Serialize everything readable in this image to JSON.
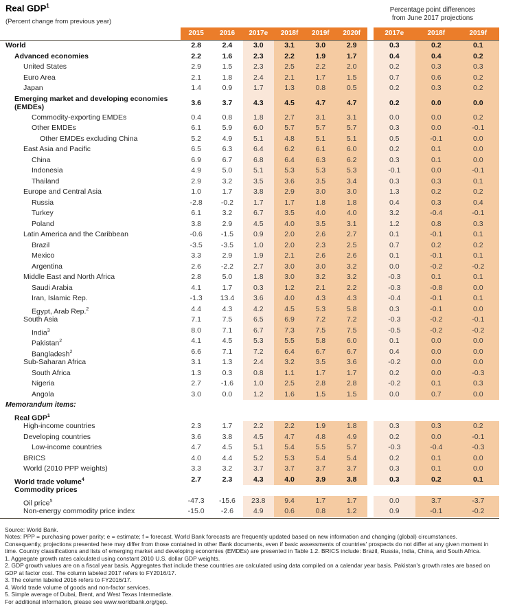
{
  "header": {
    "title": "Real GDP",
    "title_sup": "1",
    "subtitle": "(Percent change from previous year)",
    "diff_caption_line1": "Percentage point differences",
    "diff_caption_line2": "from June 2017 projections"
  },
  "colors": {
    "header_bg": "#EB7D2A",
    "shade_light": "#FAE7D9",
    "shade_dark": "#F5CBA2",
    "rule_color": "#4a4336"
  },
  "table": {
    "year_columns": [
      "2015",
      "2016",
      "2017e",
      "2018f",
      "2019f",
      "2020f"
    ],
    "diff_columns": [
      "2017e",
      "2018f",
      "2019f"
    ],
    "rows": [
      {
        "label": "World",
        "sup": "",
        "indent": 0,
        "bold": true,
        "italic": false,
        "tall": false,
        "values": [
          "2.8",
          "2.4",
          "3.0",
          "3.1",
          "3.0",
          "2.9"
        ],
        "diffs": [
          "0.3",
          "0.2",
          "0.1"
        ]
      },
      {
        "label": "Advanced economies",
        "sup": "",
        "indent": 1,
        "bold": true,
        "italic": false,
        "tall": false,
        "values": [
          "2.2",
          "1.6",
          "2.3",
          "2.2",
          "1.9",
          "1.7"
        ],
        "diffs": [
          "0.4",
          "0.4",
          "0.2"
        ]
      },
      {
        "label": "United States",
        "sup": "",
        "indent": 2,
        "bold": false,
        "italic": false,
        "tall": false,
        "values": [
          "2.9",
          "1.5",
          "2.3",
          "2.5",
          "2.2",
          "2.0"
        ],
        "diffs": [
          "0.2",
          "0.3",
          "0.3"
        ]
      },
      {
        "label": "Euro Area",
        "sup": "",
        "indent": 2,
        "bold": false,
        "italic": false,
        "tall": false,
        "values": [
          "2.1",
          "1.8",
          "2.4",
          "2.1",
          "1.7",
          "1.5"
        ],
        "diffs": [
          "0.7",
          "0.6",
          "0.2"
        ]
      },
      {
        "label": "Japan",
        "sup": "",
        "indent": 2,
        "bold": false,
        "italic": false,
        "tall": false,
        "values": [
          "1.4",
          "0.9",
          "1.7",
          "1.3",
          "0.8",
          "0.5"
        ],
        "diffs": [
          "0.2",
          "0.3",
          "0.2"
        ]
      },
      {
        "label": "Emerging market and developing economies (EMDEs)",
        "sup": "",
        "indent": 1,
        "bold": true,
        "italic": false,
        "tall": true,
        "values": [
          "3.6",
          "3.7",
          "4.3",
          "4.5",
          "4.7",
          "4.7"
        ],
        "diffs": [
          "0.2",
          "0.0",
          "0.0"
        ]
      },
      {
        "label": "Commodity-exporting EMDEs",
        "sup": "",
        "indent": 3,
        "bold": false,
        "italic": false,
        "tall": false,
        "values": [
          "0.4",
          "0.8",
          "1.8",
          "2.7",
          "3.1",
          "3.1"
        ],
        "diffs": [
          "0.0",
          "0.0",
          "0.2"
        ]
      },
      {
        "label": "Other EMDEs",
        "sup": "",
        "indent": 3,
        "bold": false,
        "italic": false,
        "tall": false,
        "values": [
          "6.1",
          "5.9",
          "6.0",
          "5.7",
          "5.7",
          "5.7"
        ],
        "diffs": [
          "0.3",
          "0.0",
          "-0.1"
        ]
      },
      {
        "label": "Other EMDEs excluding China",
        "sup": "",
        "indent": 4,
        "bold": false,
        "italic": false,
        "tall": false,
        "values": [
          "5.2",
          "4.9",
          "5.1",
          "4.8",
          "5.1",
          "5.1"
        ],
        "diffs": [
          "0.5",
          "-0.1",
          "0.0"
        ]
      },
      {
        "label": "East Asia and Pacific",
        "sup": "",
        "indent": 2,
        "bold": false,
        "italic": false,
        "tall": false,
        "values": [
          "6.5",
          "6.3",
          "6.4",
          "6.2",
          "6.1",
          "6.0"
        ],
        "diffs": [
          "0.2",
          "0.1",
          "0.0"
        ]
      },
      {
        "label": "China",
        "sup": "",
        "indent": 3,
        "bold": false,
        "italic": false,
        "tall": false,
        "values": [
          "6.9",
          "6.7",
          "6.8",
          "6.4",
          "6.3",
          "6.2"
        ],
        "diffs": [
          "0.3",
          "0.1",
          "0.0"
        ]
      },
      {
        "label": "Indonesia",
        "sup": "",
        "indent": 3,
        "bold": false,
        "italic": false,
        "tall": false,
        "values": [
          "4.9",
          "5.0",
          "5.1",
          "5.3",
          "5.3",
          "5.3"
        ],
        "diffs": [
          "-0.1",
          "0.0",
          "-0.1"
        ]
      },
      {
        "label": "Thailand",
        "sup": "",
        "indent": 3,
        "bold": false,
        "italic": false,
        "tall": false,
        "values": [
          "2.9",
          "3.2",
          "3.5",
          "3.6",
          "3.5",
          "3.4"
        ],
        "diffs": [
          "0.3",
          "0.3",
          "0.1"
        ]
      },
      {
        "label": "Europe and Central Asia",
        "sup": "",
        "indent": 2,
        "bold": false,
        "italic": false,
        "tall": false,
        "values": [
          "1.0",
          "1.7",
          "3.8",
          "2.9",
          "3.0",
          "3.0"
        ],
        "diffs": [
          "1.3",
          "0.2",
          "0.2"
        ]
      },
      {
        "label": "Russia",
        "sup": "",
        "indent": 3,
        "bold": false,
        "italic": false,
        "tall": false,
        "values": [
          "-2.8",
          "-0.2",
          "1.7",
          "1.7",
          "1.8",
          "1.8"
        ],
        "diffs": [
          "0.4",
          "0.3",
          "0.4"
        ]
      },
      {
        "label": "Turkey",
        "sup": "",
        "indent": 3,
        "bold": false,
        "italic": false,
        "tall": false,
        "values": [
          "6.1",
          "3.2",
          "6.7",
          "3.5",
          "4.0",
          "4.0"
        ],
        "diffs": [
          "3.2",
          "-0.4",
          "-0.1"
        ]
      },
      {
        "label": "Poland",
        "sup": "",
        "indent": 3,
        "bold": false,
        "italic": false,
        "tall": false,
        "values": [
          "3.8",
          "2.9",
          "4.5",
          "4.0",
          "3.5",
          "3.1"
        ],
        "diffs": [
          "1.2",
          "0.8",
          "0.3"
        ]
      },
      {
        "label": "Latin America and the Caribbean",
        "sup": "",
        "indent": 2,
        "bold": false,
        "italic": false,
        "tall": false,
        "values": [
          "-0.6",
          "-1.5",
          "0.9",
          "2.0",
          "2.6",
          "2.7"
        ],
        "diffs": [
          "0.1",
          "-0.1",
          "0.1"
        ]
      },
      {
        "label": "Brazil",
        "sup": "",
        "indent": 3,
        "bold": false,
        "italic": false,
        "tall": false,
        "values": [
          "-3.5",
          "-3.5",
          "1.0",
          "2.0",
          "2.3",
          "2.5"
        ],
        "diffs": [
          "0.7",
          "0.2",
          "0.2"
        ]
      },
      {
        "label": "Mexico",
        "sup": "",
        "indent": 3,
        "bold": false,
        "italic": false,
        "tall": false,
        "values": [
          "3.3",
          "2.9",
          "1.9",
          "2.1",
          "2.6",
          "2.6"
        ],
        "diffs": [
          "0.1",
          "-0.1",
          "0.1"
        ]
      },
      {
        "label": "Argentina",
        "sup": "",
        "indent": 3,
        "bold": false,
        "italic": false,
        "tall": false,
        "values": [
          "2.6",
          "-2.2",
          "2.7",
          "3.0",
          "3.0",
          "3.2"
        ],
        "diffs": [
          "0.0",
          "-0.2",
          "-0.2"
        ]
      },
      {
        "label": "Middle East and North Africa",
        "sup": "",
        "indent": 2,
        "bold": false,
        "italic": false,
        "tall": false,
        "values": [
          "2.8",
          "5.0",
          "1.8",
          "3.0",
          "3.2",
          "3.2"
        ],
        "diffs": [
          "-0.3",
          "0.1",
          "0.1"
        ]
      },
      {
        "label": "Saudi Arabia",
        "sup": "",
        "indent": 3,
        "bold": false,
        "italic": false,
        "tall": false,
        "values": [
          "4.1",
          "1.7",
          "0.3",
          "1.2",
          "2.1",
          "2.2"
        ],
        "diffs": [
          "-0.3",
          "-0.8",
          "0.0"
        ]
      },
      {
        "label": "Iran, Islamic Rep.",
        "sup": "",
        "indent": 3,
        "bold": false,
        "italic": false,
        "tall": false,
        "values": [
          "-1.3",
          "13.4",
          "3.6",
          "4.0",
          "4.3",
          "4.3"
        ],
        "diffs": [
          "-0.4",
          "-0.1",
          "0.1"
        ]
      },
      {
        "label": "Egypt, Arab Rep.",
        "sup": "2",
        "indent": 3,
        "bold": false,
        "italic": false,
        "tall": false,
        "values": [
          "4.4",
          "4.3",
          "4.2",
          "4.5",
          "5.3",
          "5.8"
        ],
        "diffs": [
          "0.3",
          "-0.1",
          "0.0"
        ]
      },
      {
        "label": "South Asia",
        "sup": "",
        "indent": 2,
        "bold": false,
        "italic": false,
        "tall": false,
        "values": [
          "7.1",
          "7.5",
          "6.5",
          "6.9",
          "7.2",
          "7.2"
        ],
        "diffs": [
          "-0.3",
          "-0.2",
          "-0.1"
        ]
      },
      {
        "label": "India",
        "sup": "3",
        "indent": 3,
        "bold": false,
        "italic": false,
        "tall": false,
        "values": [
          "8.0",
          "7.1",
          "6.7",
          "7.3",
          "7.5",
          "7.5"
        ],
        "diffs": [
          "-0.5",
          "-0.2",
          "-0.2"
        ]
      },
      {
        "label": "Pakistan",
        "sup": "2",
        "indent": 3,
        "bold": false,
        "italic": false,
        "tall": false,
        "values": [
          "4.1",
          "4.5",
          "5.3",
          "5.5",
          "5.8",
          "6.0"
        ],
        "diffs": [
          "0.1",
          "0.0",
          "0.0"
        ]
      },
      {
        "label": "Bangladesh",
        "sup": "2",
        "indent": 3,
        "bold": false,
        "italic": false,
        "tall": false,
        "values": [
          "6.6",
          "7.1",
          "7.2",
          "6.4",
          "6.7",
          "6.7"
        ],
        "diffs": [
          "0.4",
          "0.0",
          "0.0"
        ]
      },
      {
        "label": "Sub-Saharan Africa",
        "sup": "",
        "indent": 2,
        "bold": false,
        "italic": false,
        "tall": false,
        "values": [
          "3.1",
          "1.3",
          "2.4",
          "3.2",
          "3.5",
          "3.6"
        ],
        "diffs": [
          "-0.2",
          "0.0",
          "0.0"
        ]
      },
      {
        "label": "South Africa",
        "sup": "",
        "indent": 3,
        "bold": false,
        "italic": false,
        "tall": false,
        "values": [
          "1.3",
          "0.3",
          "0.8",
          "1.1",
          "1.7",
          "1.7"
        ],
        "diffs": [
          "0.2",
          "0.0",
          "-0.3"
        ]
      },
      {
        "label": "Nigeria",
        "sup": "",
        "indent": 3,
        "bold": false,
        "italic": false,
        "tall": false,
        "values": [
          "2.7",
          "-1.6",
          "1.0",
          "2.5",
          "2.8",
          "2.8"
        ],
        "diffs": [
          "-0.2",
          "0.1",
          "0.3"
        ]
      },
      {
        "label": "Angola",
        "sup": "",
        "indent": 3,
        "bold": false,
        "italic": false,
        "tall": false,
        "values": [
          "3.0",
          "0.0",
          "1.2",
          "1.6",
          "1.5",
          "1.5"
        ],
        "diffs": [
          "0.0",
          "0.7",
          "0.0"
        ]
      },
      {
        "label": "Memorandum items:",
        "sup": "",
        "indent": 0,
        "bold": true,
        "italic": true,
        "tall": false,
        "values": [],
        "diffs": []
      },
      {
        "label": "Real GDP",
        "sup": "1",
        "indent": 1,
        "bold": true,
        "italic": false,
        "tall": false,
        "values": [],
        "diffs": []
      },
      {
        "label": "High-income countries",
        "sup": "",
        "indent": 2,
        "bold": false,
        "italic": false,
        "tall": false,
        "values": [
          "2.3",
          "1.7",
          "2.2",
          "2.2",
          "1.9",
          "1.8"
        ],
        "diffs": [
          "0.3",
          "0.3",
          "0.2"
        ]
      },
      {
        "label": "Developing countries",
        "sup": "",
        "indent": 2,
        "bold": false,
        "italic": false,
        "tall": false,
        "values": [
          "3.6",
          "3.8",
          "4.5",
          "4.7",
          "4.8",
          "4.9"
        ],
        "diffs": [
          "0.2",
          "0.0",
          "-0.1"
        ]
      },
      {
        "label": "Low-income countries",
        "sup": "",
        "indent": 3,
        "bold": false,
        "italic": false,
        "tall": false,
        "values": [
          "4.7",
          "4.5",
          "5.1",
          "5.4",
          "5.5",
          "5.7"
        ],
        "diffs": [
          "-0.3",
          "-0.4",
          "-0.3"
        ]
      },
      {
        "label": "BRICS",
        "sup": "",
        "indent": 2,
        "bold": false,
        "italic": false,
        "tall": false,
        "values": [
          "4.0",
          "4.4",
          "5.2",
          "5.3",
          "5.4",
          "5.4"
        ],
        "diffs": [
          "0.2",
          "0.1",
          "0.0"
        ]
      },
      {
        "label": "World (2010 PPP weights)",
        "sup": "",
        "indent": 2,
        "bold": false,
        "italic": false,
        "tall": false,
        "values": [
          "3.3",
          "3.2",
          "3.7",
          "3.7",
          "3.7",
          "3.7"
        ],
        "diffs": [
          "0.3",
          "0.1",
          "0.0"
        ]
      },
      {
        "label": "World trade volume",
        "sup": "4",
        "indent": 1,
        "bold": true,
        "italic": false,
        "tall": false,
        "values": [
          "2.7",
          "2.3",
          "4.3",
          "4.0",
          "3.9",
          "3.8"
        ],
        "diffs": [
          "0.3",
          "0.2",
          "0.1"
        ]
      },
      {
        "label": "Commodity prices",
        "sup": "",
        "indent": 1,
        "bold": true,
        "italic": false,
        "tall": false,
        "values": [],
        "diffs": []
      },
      {
        "label": "Oil price",
        "sup": "5",
        "indent": 2,
        "bold": false,
        "italic": false,
        "tall": false,
        "values": [
          "-47.3",
          "-15.6",
          "23.8",
          "9.4",
          "1.7",
          "1.7"
        ],
        "diffs": [
          "0.0",
          "3.7",
          "-3.7"
        ]
      },
      {
        "label": "Non-energy commodity price index",
        "sup": "",
        "indent": 2,
        "bold": false,
        "italic": false,
        "tall": false,
        "values": [
          "-15.0",
          "-2.6",
          "4.9",
          "0.6",
          "0.8",
          "1.2"
        ],
        "diffs": [
          "0.9",
          "-0.1",
          "-0.2"
        ]
      }
    ]
  },
  "footnotes": [
    "Source: World Bank.",
    "Notes: PPP = purchasing power parity; e = estimate; f = forecast. World Bank forecasts are frequently updated based on new information and changing (global) circumstances.",
    "Consequently, projections presented here may differ from those contained in other Bank documents, even if basic assessments of countries' prospects do not differ at any given moment in",
    "time. Country classifications and lists of emerging market and developing economies (EMDEs) are presented in Table 1.2. BRICS include: Brazil, Russia, India, China, and South Africa.",
    "1. Aggregate growth rates calculated using constant 2010 U.S. dollar GDP weights.",
    "2. GDP growth values are on a fiscal year basis. Aggregates that include these countries are calculated using data compiled on a calendar year basis. Pakistan's growth rates are based on",
    "GDP at factor cost. The column labeled 2017 refers to FY2016/17.",
    "3. The column labeled 2016 refers to FY2016/17.",
    "4. World trade volume of goods and non-factor services.",
    "5. Simple average of Dubai, Brent, and West Texas Intermediate.",
    "For additional information, please see www.worldbank.org/gep."
  ]
}
